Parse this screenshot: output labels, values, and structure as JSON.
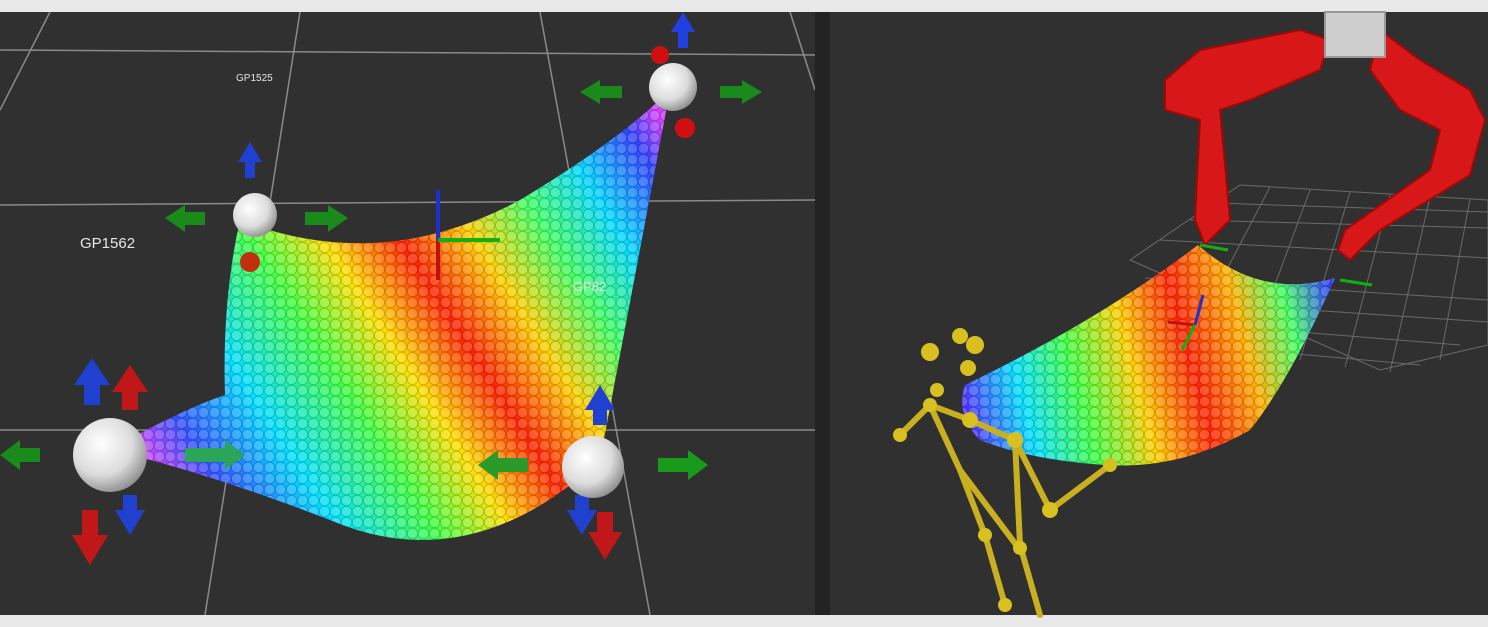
{
  "left_panel": {
    "labels": [
      "GP1525",
      "GP1562",
      "GP82"
    ]
  }
}
